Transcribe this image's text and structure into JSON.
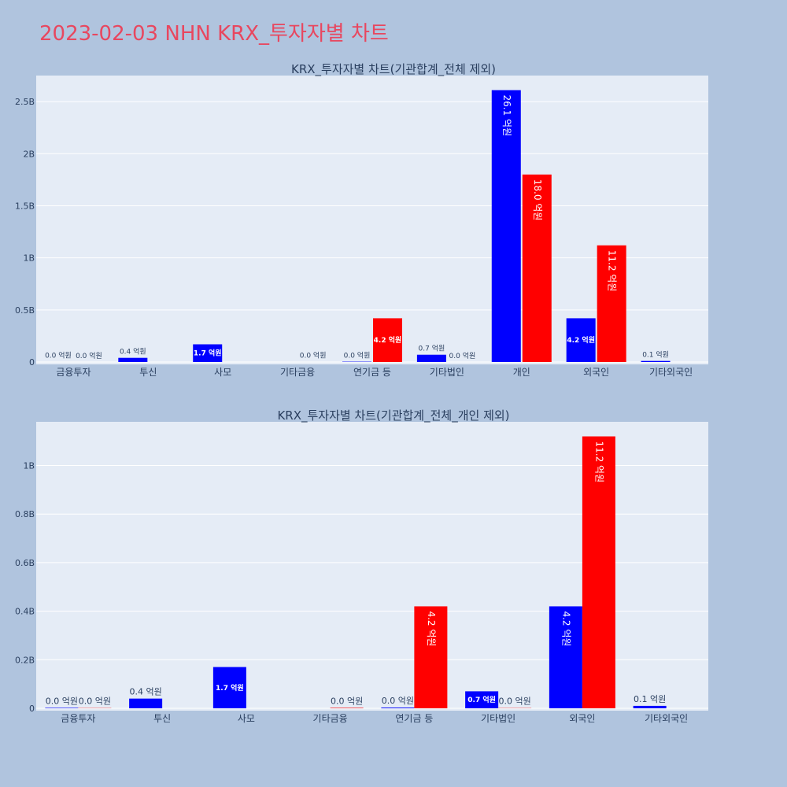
{
  "page_title": "2023-02-03 NHN KRX_투자자별 차트",
  "colors": {
    "buy": "#0000ff",
    "sell": "#ff0000",
    "title": "#e8475f",
    "plot_bg": "#e5ecf6",
    "page_bg": "#b0c4de"
  },
  "chart_data": [
    {
      "type": "bar",
      "title": "KRX_투자자별 차트(기관합계_전체 제외)",
      "categories": [
        "금융투자",
        "투신",
        "사모",
        "기타금융",
        "연기금 등",
        "기타법인",
        "개인",
        "외국인",
        "기타외국인"
      ],
      "series": [
        {
          "values": [
            0.002,
            0.04,
            0.17,
            0.0,
            0.003,
            0.07,
            2.61,
            0.42,
            0.01
          ],
          "labels": [
            "0.0 억원",
            "0.4 억원",
            "1.7 억원",
            "",
            "0.0 억원",
            "0.7 억원",
            "26.1 억원",
            "4.2 억원",
            "0.1 억원"
          ]
        },
        {
          "values": [
            0.001,
            0.0,
            0.0,
            0.002,
            0.42,
            0.001,
            1.8,
            1.12,
            0.0
          ],
          "labels": [
            "0.0 억원",
            "",
            "",
            "0.0 억원",
            "4.2 억원",
            "0.0 억원",
            "18.0 억원",
            "11.2 억원",
            ""
          ]
        }
      ],
      "ylim": [
        0,
        2.75
      ],
      "yticks": [
        0,
        0.5,
        1,
        1.5,
        2,
        2.5
      ],
      "ytick_labels": [
        "0",
        "0.5B",
        "1B",
        "1.5B",
        "2B",
        "2.5B"
      ],
      "grid": true
    },
    {
      "type": "bar",
      "title": "KRX_투자자별 차트(기관합계_전체_개인 제외)",
      "categories": [
        "금융투자",
        "투신",
        "사모",
        "기타금융",
        "연기금 등",
        "기타법인",
        "외국인",
        "기타외국인"
      ],
      "series": [
        {
          "values": [
            0.002,
            0.04,
            0.17,
            0.0,
            0.003,
            0.07,
            0.42,
            0.01
          ],
          "labels": [
            "0.0 억원",
            "0.4 억원",
            "1.7 억원",
            "",
            "0.0 억원",
            "0.7 억원",
            "4.2 억원",
            "0.1 억원"
          ]
        },
        {
          "values": [
            0.001,
            0.0,
            0.0,
            0.002,
            0.42,
            0.001,
            1.12,
            0.0
          ],
          "labels": [
            "0.0 억원",
            "",
            "",
            "0.0 억원",
            "4.2 억원",
            "0.0 억원",
            "11.2 억원",
            ""
          ]
        }
      ],
      "ylim": [
        0,
        1.18
      ],
      "yticks": [
        0,
        0.2,
        0.4,
        0.6,
        0.8,
        1
      ],
      "ytick_labels": [
        "0",
        "0.2B",
        "0.4B",
        "0.6B",
        "0.8B",
        "1B"
      ],
      "grid": true
    }
  ]
}
